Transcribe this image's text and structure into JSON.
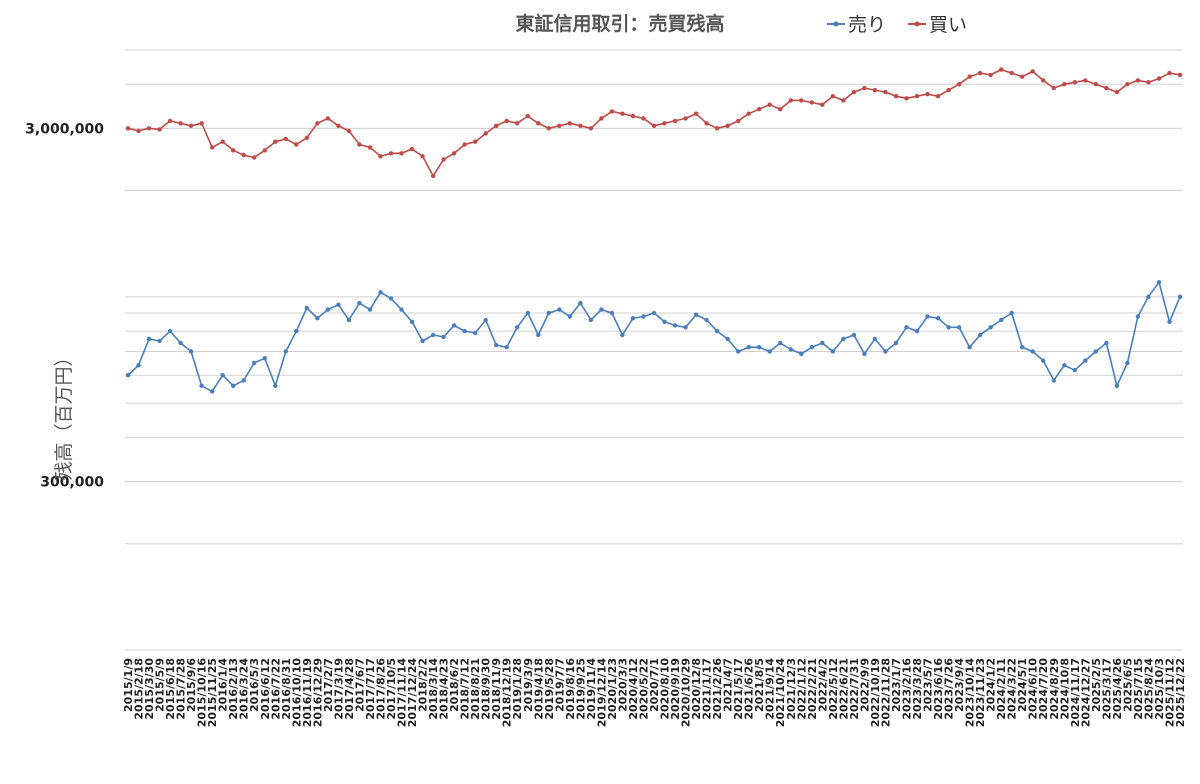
{
  "chart_data": {
    "type": "line",
    "title": "東証信用取引：売買残高",
    "ylabel": "残高（百万円）",
    "xlabel": "",
    "yscale": "log",
    "ylim": [
      100000,
      5000000
    ],
    "ytick_labels": [
      {
        "value": 300000,
        "label": "300,000"
      },
      {
        "value": 3000000,
        "label": "3,000,000"
      }
    ],
    "grid": true,
    "legend": "top-right",
    "series_colors": {
      "sell": "#4a7ebb",
      "buy": "#be4b48"
    },
    "x": [
      "2015/1/9",
      "2015/2/18",
      "2015/3/30",
      "2015/5/9",
      "2015/6/18",
      "2015/7/28",
      "2015/9/6",
      "2015/10/16",
      "2015/11/25",
      "2016/1/4",
      "2016/2/13",
      "2016/3/24",
      "2016/5/3",
      "2016/6/12",
      "2016/7/22",
      "2016/8/31",
      "2016/10/10",
      "2016/11/19",
      "2016/12/29",
      "2017/2/7",
      "2017/3/19",
      "2017/4/28",
      "2017/6/7",
      "2017/7/17",
      "2017/8/26",
      "2017/10/5",
      "2017/11/14",
      "2017/12/24",
      "2018/2/2",
      "2018/3/14",
      "2018/4/23",
      "2018/6/2",
      "2018/7/12",
      "2018/8/21",
      "2018/9/30",
      "2018/11/9",
      "2018/12/19",
      "2019/1/28",
      "2019/3/9",
      "2019/4/18",
      "2019/5/28",
      "2019/7/7",
      "2019/8/16",
      "2019/9/25",
      "2019/11/4",
      "2019/12/14",
      "2020/1/23",
      "2020/3/3",
      "2020/4/12",
      "2020/5/22",
      "2020/7/1",
      "2020/8/10",
      "2020/9/19",
      "2020/10/29",
      "2020/12/8",
      "2021/1/17",
      "2021/2/26",
      "2021/4/7",
      "2021/5/17",
      "2021/6/26",
      "2021/8/5",
      "2021/9/14",
      "2021/10/24",
      "2021/12/3",
      "2022/1/12",
      "2022/2/21",
      "2022/4/2",
      "2022/5/12",
      "2022/6/21",
      "2022/7/31",
      "2022/9/9",
      "2022/10/19",
      "2022/11/28",
      "2023/1/7",
      "2023/2/16",
      "2023/3/28",
      "2023/5/7",
      "2023/6/16",
      "2023/7/26",
      "2023/9/4",
      "2023/10/14",
      "2023/11/23",
      "2024/1/2",
      "2024/2/11",
      "2024/3/22",
      "2024/5/1",
      "2024/6/10",
      "2024/7/20",
      "2024/8/29",
      "2024/10/8",
      "2024/11/17",
      "2024/12/27",
      "2025/2/5",
      "2025/3/17",
      "2025/4/26",
      "2025/6/5",
      "2025/7/15",
      "2025/8/24",
      "2025/10/3",
      "2025/11/12",
      "2025/12/22"
    ],
    "series": [
      {
        "name": "売り",
        "key": "sell",
        "values": [
          600000,
          640000,
          760000,
          750000,
          800000,
          740000,
          700000,
          560000,
          540000,
          600000,
          560000,
          580000,
          650000,
          670000,
          560000,
          700000,
          800000,
          930000,
          870000,
          920000,
          950000,
          860000,
          960000,
          920000,
          1030000,
          990000,
          920000,
          850000,
          750000,
          780000,
          770000,
          830000,
          800000,
          790000,
          860000,
          730000,
          720000,
          820000,
          900000,
          780000,
          900000,
          920000,
          880000,
          960000,
          860000,
          920000,
          900000,
          780000,
          870000,
          880000,
          900000,
          850000,
          830000,
          820000,
          890000,
          860000,
          800000,
          760000,
          700000,
          720000,
          720000,
          700000,
          740000,
          710000,
          690000,
          720000,
          740000,
          700000,
          760000,
          780000,
          690000,
          760000,
          700000,
          740000,
          820000,
          800000,
          880000,
          870000,
          820000,
          820000,
          720000,
          780000,
          820000,
          860000,
          900000,
          720000,
          700000,
          660000,
          580000,
          640000,
          620000,
          660000,
          700000,
          740000,
          560000,
          650000,
          880000,
          1000000,
          1100000,
          850000,
          1000000
        ]
      },
      {
        "name": "買い",
        "key": "buy",
        "values": [
          3000000,
          2950000,
          3000000,
          2980000,
          3150000,
          3100000,
          3050000,
          3100000,
          2650000,
          2750000,
          2600000,
          2520000,
          2480000,
          2600000,
          2750000,
          2800000,
          2700000,
          2820000,
          3100000,
          3200000,
          3050000,
          2950000,
          2700000,
          2650000,
          2500000,
          2550000,
          2550000,
          2620000,
          2500000,
          2200000,
          2450000,
          2550000,
          2700000,
          2750000,
          2900000,
          3050000,
          3150000,
          3100000,
          3250000,
          3100000,
          3000000,
          3050000,
          3100000,
          3050000,
          3000000,
          3200000,
          3350000,
          3300000,
          3250000,
          3200000,
          3050000,
          3100000,
          3150000,
          3200000,
          3300000,
          3100000,
          3000000,
          3050000,
          3150000,
          3300000,
          3400000,
          3500000,
          3400000,
          3600000,
          3600000,
          3550000,
          3500000,
          3700000,
          3600000,
          3800000,
          3900000,
          3850000,
          3800000,
          3700000,
          3650000,
          3700000,
          3750000,
          3700000,
          3850000,
          4000000,
          4200000,
          4300000,
          4250000,
          4400000,
          4300000,
          4200000,
          4350000,
          4100000,
          3900000,
          4000000,
          4050000,
          4100000,
          4000000,
          3900000,
          3800000,
          4000000,
          4100000,
          4050000,
          4150000,
          4300000,
          4250000
        ]
      }
    ]
  }
}
